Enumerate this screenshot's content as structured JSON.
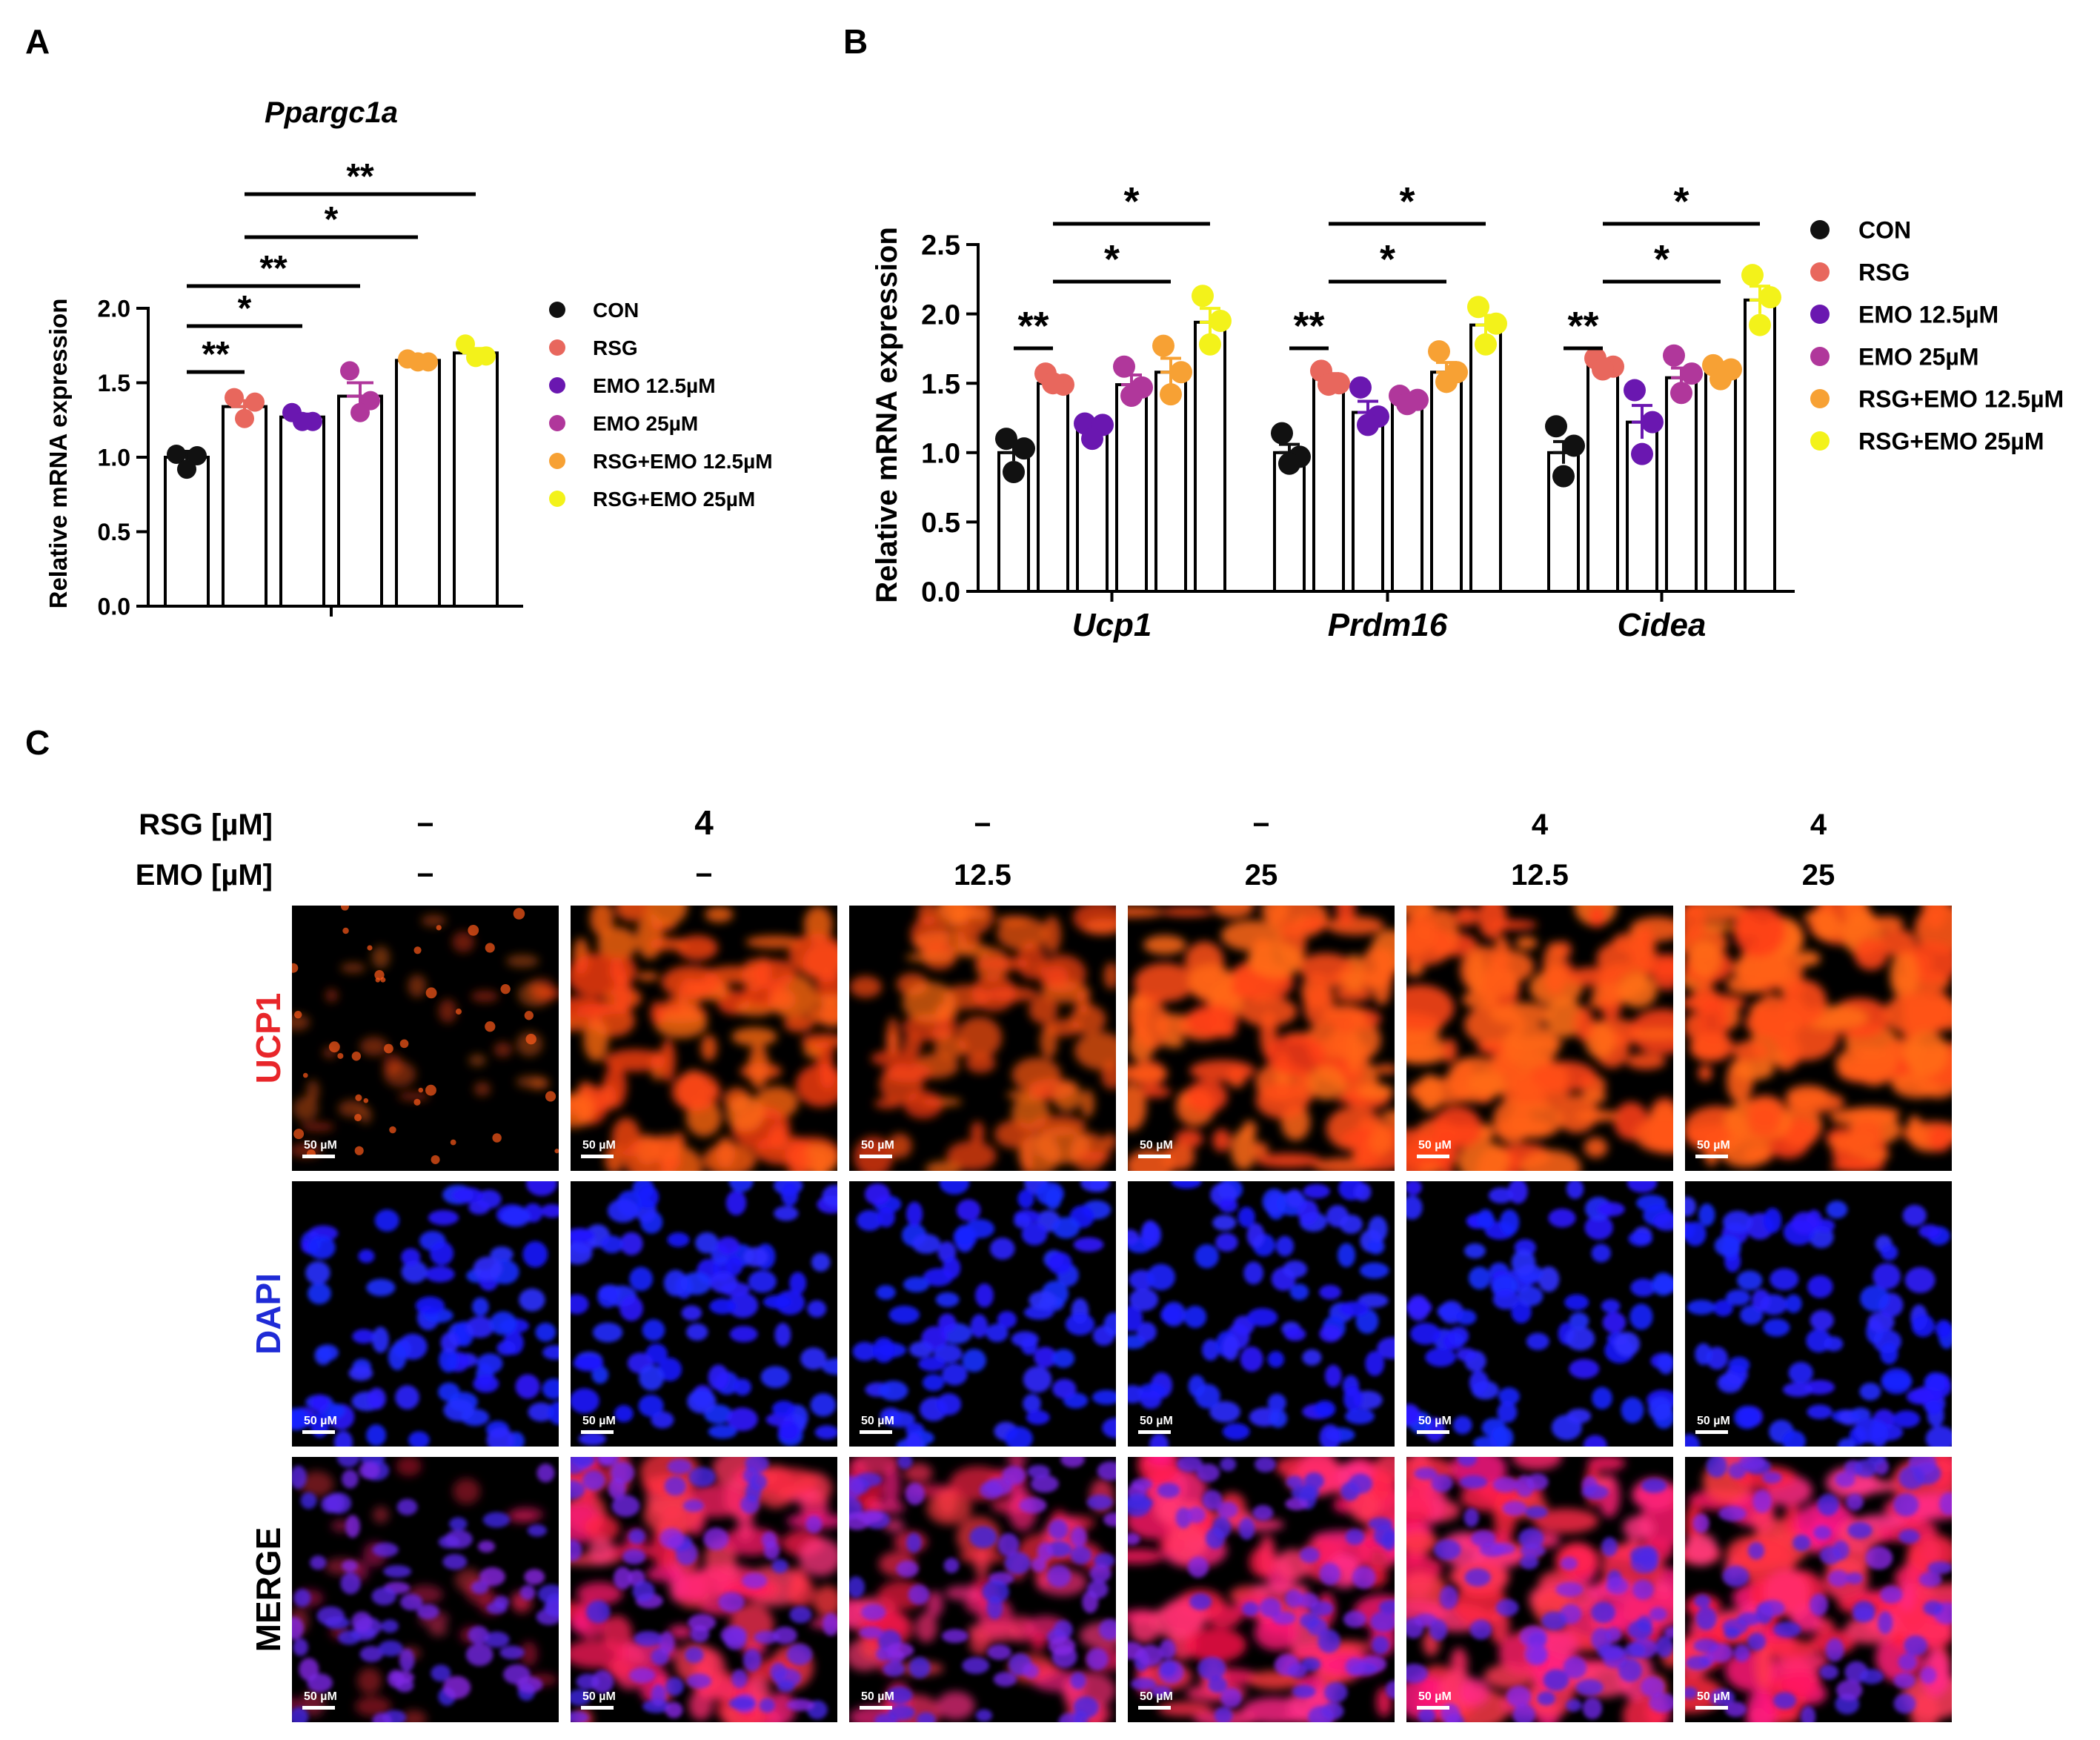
{
  "colors": {
    "CON": "#111111",
    "RSG": "#e8675d",
    "EMO 12.5µM": "#6a17b0",
    "EMO 25µM": "#b0379b",
    "RSG+EMO 12.5µM": "#f7a134",
    "RSG+EMO 25µM": "#f3f21a",
    "ucp1_label": "#e8262a",
    "dapi_label": "#1f2bd6"
  },
  "panels": {
    "A": "A",
    "B": "B",
    "C": "C"
  },
  "chart_data": [
    {
      "type": "bar",
      "panel": "A",
      "title": "Ppargc1a",
      "ylabel": "Relative mRNA expression",
      "xlabel": "",
      "ylim": [
        0,
        2.0
      ],
      "yticks": [
        "0.0",
        "0.5",
        "1.0",
        "1.5",
        "2.0"
      ],
      "categories": [
        "Ppargc1a"
      ],
      "series": [
        {
          "name": "CON",
          "values": [
            1.0
          ],
          "sem": [
            0.04
          ],
          "points": [
            [
              1.02,
              1.01,
              0.92
            ]
          ]
        },
        {
          "name": "RSG",
          "values": [
            1.34
          ],
          "sem": [
            0.04
          ],
          "points": [
            [
              1.4,
              1.37,
              1.26
            ]
          ]
        },
        {
          "name": "EMO 12.5µM",
          "values": [
            1.27
          ],
          "sem": [
            0.02
          ],
          "points": [
            [
              1.3,
              1.24,
              1.24
            ]
          ]
        },
        {
          "name": "EMO 25µM",
          "values": [
            1.41
          ],
          "sem": [
            0.09
          ],
          "points": [
            [
              1.58,
              1.38,
              1.3
            ]
          ]
        },
        {
          "name": "RSG+EMO 12.5µM",
          "values": [
            1.65
          ],
          "sem": [
            0.01
          ],
          "points": [
            [
              1.66,
              1.64,
              1.64
            ]
          ]
        },
        {
          "name": "RSG+EMO 25µM",
          "values": [
            1.7
          ],
          "sem": [
            0.03
          ],
          "points": [
            [
              1.76,
              1.68,
              1.67
            ]
          ]
        }
      ],
      "significance": [
        {
          "from": 0,
          "to": 1,
          "label": "**"
        },
        {
          "from": 0,
          "to": 2,
          "label": "*"
        },
        {
          "from": 0,
          "to": 3,
          "label": "**"
        },
        {
          "from": 1,
          "to": 4,
          "label": "*"
        },
        {
          "from": 1,
          "to": 5,
          "label": "**"
        }
      ],
      "legend": {
        "position": "right",
        "entries": [
          "CON",
          "RSG",
          "EMO 12.5µM",
          "EMO 25µM",
          "RSG+EMO 12.5µM",
          "RSG+EMO 25µM"
        ]
      }
    },
    {
      "type": "bar",
      "panel": "B",
      "title": "",
      "ylabel": "Relative mRNA expression",
      "xlabel": "",
      "ylim": [
        0,
        2.5
      ],
      "yticks": [
        "0.0",
        "0.5",
        "1.0",
        "1.5",
        "2.0",
        "2.5"
      ],
      "categories": [
        "Ucp1",
        "Prdm16",
        "Cidea"
      ],
      "series": [
        {
          "name": "CON",
          "values": [
            1.0,
            1.0,
            1.0
          ],
          "sem": [
            0.06,
            0.06,
            0.08
          ],
          "points": [
            [
              1.1,
              1.03,
              0.86
            ],
            [
              1.14,
              0.97,
              0.92
            ],
            [
              1.19,
              1.05,
              0.83
            ]
          ]
        },
        {
          "name": "RSG",
          "values": [
            1.5,
            1.53,
            1.63
          ],
          "sem": [
            0.03,
            0.04,
            0.03
          ],
          "points": [
            [
              1.57,
              1.49,
              1.5
            ],
            [
              1.59,
              1.5,
              1.49
            ],
            [
              1.68,
              1.62,
              1.6
            ]
          ]
        },
        {
          "name": "EMO 12.5µM",
          "values": [
            1.18,
            1.29,
            1.22
          ],
          "sem": [
            0.04,
            0.08,
            0.12
          ],
          "points": [
            [
              1.21,
              1.2,
              1.1
            ],
            [
              1.47,
              1.26,
              1.2
            ],
            [
              1.45,
              1.22,
              0.99
            ]
          ]
        },
        {
          "name": "EMO 25µM",
          "values": [
            1.49,
            1.38,
            1.54
          ],
          "sem": [
            0.07,
            0.02,
            0.07
          ],
          "points": [
            [
              1.62,
              1.47,
              1.41
            ],
            [
              1.41,
              1.38,
              1.35
            ],
            [
              1.7,
              1.57,
              1.43
            ]
          ]
        },
        {
          "name": "RSG+EMO 12.5µM",
          "values": [
            1.58,
            1.58,
            1.59
          ],
          "sem": [
            0.1,
            0.07,
            0.02
          ],
          "points": [
            [
              1.77,
              1.58,
              1.42
            ],
            [
              1.73,
              1.58,
              1.51
            ],
            [
              1.63,
              1.6,
              1.53
            ]
          ]
        },
        {
          "name": "RSG+EMO 25µM",
          "values": [
            1.94,
            1.92,
            2.1
          ],
          "sem": [
            0.1,
            0.07,
            0.1
          ],
          "points": [
            [
              2.13,
              1.95,
              1.78
            ],
            [
              2.05,
              1.93,
              1.78
            ],
            [
              2.28,
              2.12,
              1.92
            ]
          ]
        }
      ],
      "significance": [
        {
          "category": 0,
          "from": 0,
          "to": 1,
          "label": "**"
        },
        {
          "category": 0,
          "from": 1,
          "to": 4,
          "label": "*"
        },
        {
          "category": 0,
          "from": 1,
          "to": 5,
          "label": "*"
        },
        {
          "category": 1,
          "from": 0,
          "to": 1,
          "label": "**"
        },
        {
          "category": 1,
          "from": 1,
          "to": 4,
          "label": "*"
        },
        {
          "category": 1,
          "from": 1,
          "to": 5,
          "label": "*"
        },
        {
          "category": 2,
          "from": 0,
          "to": 1,
          "label": "**"
        },
        {
          "category": 2,
          "from": 1,
          "to": 4,
          "label": "*"
        },
        {
          "category": 2,
          "from": 1,
          "to": 5,
          "label": "*"
        }
      ],
      "legend": {
        "position": "right",
        "entries": [
          "CON",
          "RSG",
          "EMO 12.5µM",
          "EMO 25µM",
          "RSG+EMO 12.5µM",
          "RSG+EMO 25µM"
        ]
      }
    }
  ],
  "microscopy": {
    "row_headers": {
      "rsg": "RSG [µM]",
      "emo": "EMO [µM]"
    },
    "columns": [
      {
        "rsg": "−",
        "emo": "−"
      },
      {
        "rsg": "4",
        "emo": "−"
      },
      {
        "rsg": "−",
        "emo": "12.5"
      },
      {
        "rsg": "−",
        "emo": "25"
      },
      {
        "rsg": "4",
        "emo": "12.5"
      },
      {
        "rsg": "4",
        "emo": "25"
      }
    ],
    "rows": [
      "UCP1",
      "DAPI",
      "MERGE"
    ],
    "scale_bar": "50 µM",
    "ucp1_intensity": [
      0.12,
      0.75,
      0.6,
      0.85,
      0.88,
      0.92
    ]
  }
}
